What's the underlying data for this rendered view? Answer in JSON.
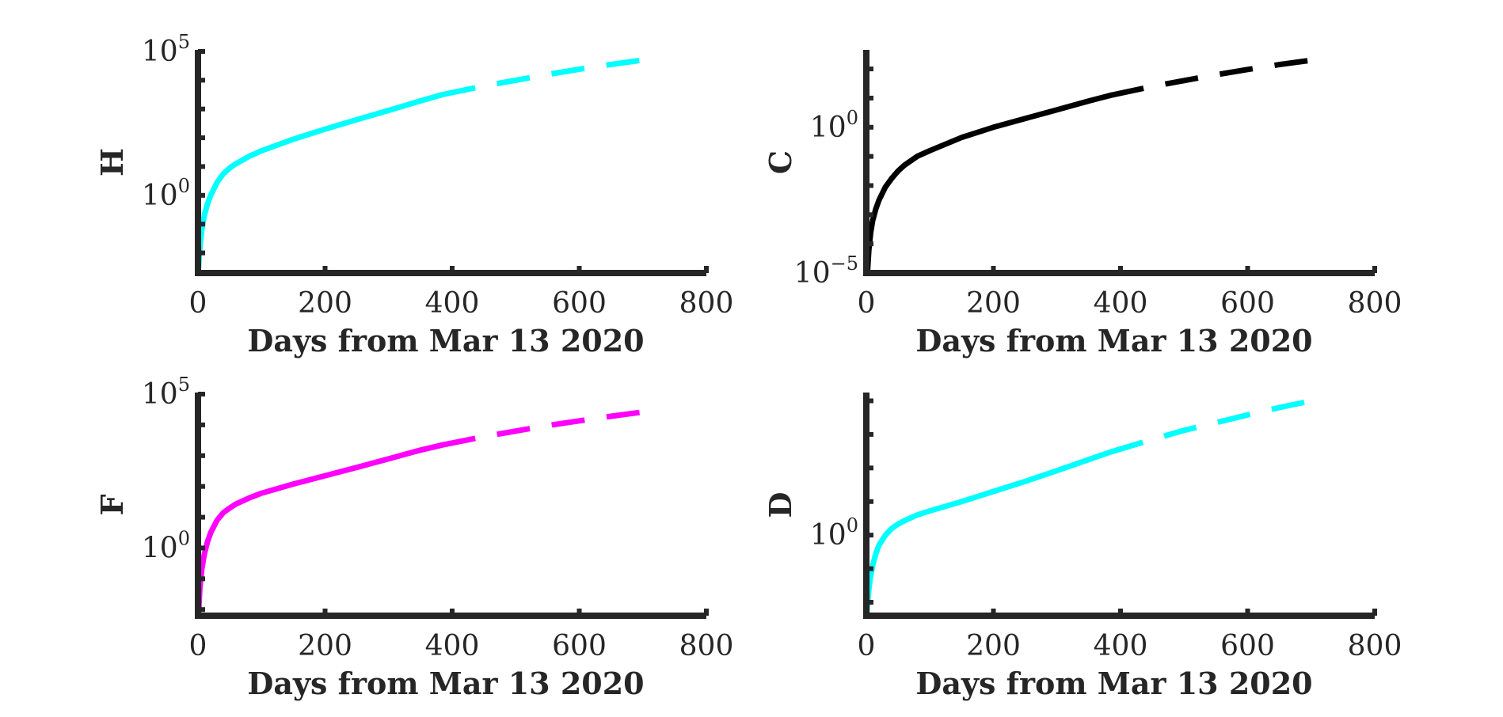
{
  "chart_data": [
    {
      "type": "line",
      "ylabel": "H",
      "xlabel": "Days from Mar 13 2020",
      "yscale": "log",
      "xlim": [
        0,
        800
      ],
      "ylim_log10": [
        -2.7,
        5
      ],
      "xticks": [
        "0",
        "200",
        "400",
        "600",
        "800"
      ],
      "yticks": [
        {
          "exp": 0,
          "label": "10",
          "sup": "0"
        },
        {
          "exp": 5,
          "label": "10",
          "sup": "5"
        }
      ],
      "color": "#00ffff",
      "series": [
        {
          "style": "solid",
          "x": [
            1,
            3,
            6,
            10,
            15,
            20,
            30,
            40,
            50,
            60,
            80,
            100,
            150,
            200,
            250,
            300,
            350,
            385
          ],
          "log10_y": [
            -2.5,
            -1.8,
            -1.2,
            -0.7,
            -0.3,
            0.0,
            0.45,
            0.75,
            0.95,
            1.1,
            1.35,
            1.55,
            1.95,
            2.3,
            2.63,
            2.95,
            3.28,
            3.5
          ]
        },
        {
          "style": "dashed",
          "x": [
            385,
            450,
            500,
            550,
            600,
            650,
            700
          ],
          "log10_y": [
            3.5,
            3.8,
            4.0,
            4.2,
            4.38,
            4.55,
            4.7
          ]
        }
      ]
    },
    {
      "type": "line",
      "ylabel": "C",
      "xlabel": "Days from Mar 13 2020",
      "yscale": "log",
      "xlim": [
        0,
        800
      ],
      "ylim_log10": [
        -5,
        2.6
      ],
      "xticks": [
        "0",
        "200",
        "400",
        "600",
        "800"
      ],
      "yticks": [
        {
          "exp": -5,
          "label": "10",
          "sup": "−5"
        },
        {
          "exp": 0,
          "label": "10",
          "sup": "0"
        }
      ],
      "color": "#000000",
      "series": [
        {
          "style": "solid",
          "x": [
            2,
            4,
            7,
            10,
            15,
            20,
            30,
            40,
            50,
            60,
            80,
            100,
            150,
            200,
            250,
            300,
            350,
            385
          ],
          "log10_y": [
            -4.9,
            -4.2,
            -3.6,
            -3.2,
            -2.8,
            -2.5,
            -2.05,
            -1.75,
            -1.5,
            -1.3,
            -1.0,
            -0.8,
            -0.35,
            0.0,
            0.3,
            0.6,
            0.9,
            1.1
          ],
          "note": ""
        },
        {
          "style": "dashed",
          "x": [
            385,
            450,
            500,
            550,
            600,
            650,
            700
          ],
          "log10_y": [
            1.1,
            1.4,
            1.6,
            1.8,
            1.98,
            2.15,
            2.3
          ]
        }
      ]
    },
    {
      "type": "line",
      "ylabel": "F",
      "xlabel": "Days from Mar 13 2020",
      "yscale": "log",
      "xlim": [
        0,
        800
      ],
      "ylim_log10": [
        -2.2,
        5
      ],
      "xticks": [
        "0",
        "200",
        "400",
        "600",
        "800"
      ],
      "yticks": [
        {
          "exp": 0,
          "label": "10",
          "sup": "0"
        },
        {
          "exp": 5,
          "label": "10",
          "sup": "5"
        }
      ],
      "color": "#ff00ff",
      "series": [
        {
          "style": "solid",
          "x": [
            1,
            3,
            6,
            10,
            15,
            20,
            30,
            40,
            50,
            60,
            80,
            100,
            150,
            200,
            250,
            300,
            350,
            385
          ],
          "log10_y": [
            -2.1,
            -1.3,
            -0.7,
            -0.2,
            0.2,
            0.5,
            0.9,
            1.15,
            1.3,
            1.43,
            1.62,
            1.78,
            2.08,
            2.35,
            2.62,
            2.9,
            3.18,
            3.35
          ],
          "note": ""
        },
        {
          "style": "dashed",
          "x": [
            385,
            450,
            500,
            550,
            600,
            650,
            700
          ],
          "log10_y": [
            3.35,
            3.62,
            3.8,
            3.98,
            4.13,
            4.28,
            4.42
          ]
        }
      ]
    },
    {
      "type": "line",
      "ylabel": "D",
      "xlabel": "Days from Mar 13 2020",
      "yscale": "log",
      "xlim": [
        0,
        800
      ],
      "ylim_log10": [
        -2.4,
        4.2
      ],
      "xticks": [
        "0",
        "200",
        "400",
        "600",
        "800"
      ],
      "yticks": [
        {
          "exp": 0,
          "label": "10",
          "sup": "0"
        }
      ],
      "color": "#00ffff",
      "series": [
        {
          "style": "solid",
          "x": [
            1,
            3,
            6,
            10,
            15,
            20,
            30,
            40,
            50,
            60,
            80,
            100,
            150,
            200,
            250,
            300,
            350,
            385
          ],
          "log10_y": [
            -2.3,
            -1.8,
            -1.3,
            -0.9,
            -0.55,
            -0.3,
            0.0,
            0.2,
            0.33,
            0.43,
            0.6,
            0.72,
            1.0,
            1.3,
            1.6,
            1.92,
            2.25,
            2.48
          ],
          "note": ""
        },
        {
          "style": "dashed",
          "x": [
            385,
            450,
            500,
            550,
            600,
            650,
            700
          ],
          "log10_y": [
            2.48,
            2.85,
            3.12,
            3.35,
            3.58,
            3.8,
            4.0
          ]
        }
      ]
    }
  ]
}
